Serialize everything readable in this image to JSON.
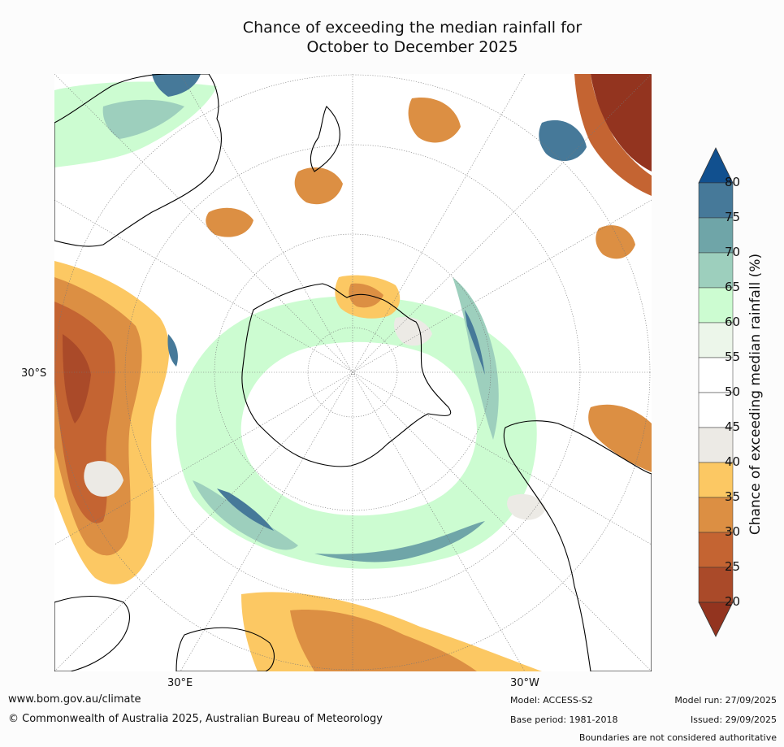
{
  "title": {
    "line1": "Chance of exceeding the median rainfall for",
    "line2": "October to December 2025"
  },
  "axes": {
    "lat_label": "30°S",
    "lon_east_label": "30°E",
    "lon_west_label": "30°W"
  },
  "colorbar": {
    "title": "Chance of exceeding median rainfall (%)",
    "ticks": [
      "80",
      "75",
      "70",
      "65",
      "60",
      "55",
      "50",
      "45",
      "40",
      "35",
      "30",
      "25",
      "20"
    ],
    "colors": {
      "over_80": "#11508f",
      "75_80": "#467999",
      "70_75": "#6fa5a8",
      "65_70": "#9dcfbd",
      "60_65": "#ccfcd1",
      "55_60": "#ecf6ea",
      "50_55": "#ffffff",
      "45_50": "#ffffff",
      "40_45": "#eceae5",
      "35_40": "#fcc863",
      "30_35": "#dc8f43",
      "25_30": "#c46432",
      "20_25": "#aa4a29",
      "under_20": "#93341f"
    }
  },
  "footer": {
    "website": "www.bom.gov.au/climate",
    "copyright": "© Commonwealth of Australia 2025, Australian Bureau of Meteorology",
    "model": "Model: ACCESS-S2",
    "base_period": "Base period: 1981-2018",
    "model_run": "Model run: 27/09/2025",
    "issued": "Issued: 29/09/2025",
    "disclaimer": "Boundaries are not considered authoritative"
  }
}
